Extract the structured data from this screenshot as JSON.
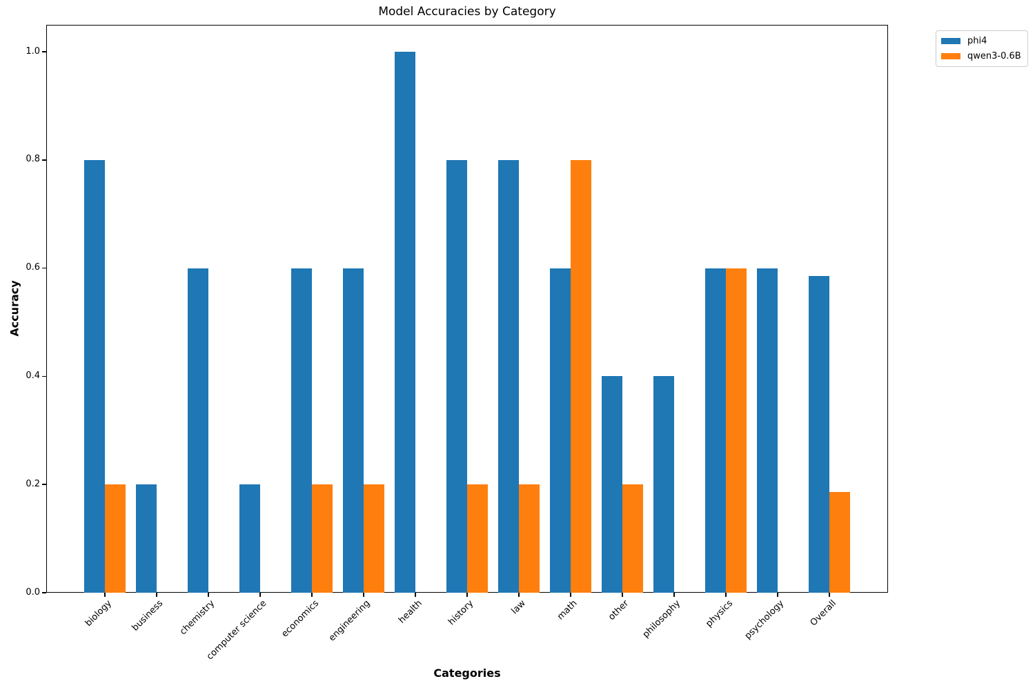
{
  "chart_data": {
    "type": "bar",
    "title": "Model Accuracies by Category",
    "xlabel": "Categories",
    "ylabel": "Accuracy",
    "categories": [
      "biology",
      "business",
      "chemistry",
      "computer science",
      "economics",
      "engineering",
      "health",
      "history",
      "law",
      "math",
      "other",
      "philosophy",
      "physics",
      "psychology",
      "Overall"
    ],
    "series": [
      {
        "name": "phi4",
        "color": "#1f77b4",
        "values": [
          0.8,
          0.2,
          0.6,
          0.2,
          0.6,
          0.6,
          1.0,
          0.8,
          0.8,
          0.6,
          0.4,
          0.4,
          0.6,
          0.6,
          0.586
        ]
      },
      {
        "name": "qwen3-0.6B",
        "color": "#ff7f0e",
        "values": [
          0.2,
          0.0,
          0.0,
          0.0,
          0.2,
          0.2,
          0.0,
          0.2,
          0.2,
          0.8,
          0.2,
          0.0,
          0.6,
          0.0,
          0.186
        ]
      }
    ],
    "yticks": [
      0.0,
      0.2,
      0.4,
      0.6,
      0.8,
      1.0
    ],
    "ytick_labels": [
      "0.0",
      "0.2",
      "0.4",
      "0.6",
      "0.8",
      "1.0"
    ],
    "ylim": [
      0,
      1.05
    ],
    "grid": false,
    "bar_orientation": "vertical",
    "legend_position": "upper-right-outside"
  }
}
